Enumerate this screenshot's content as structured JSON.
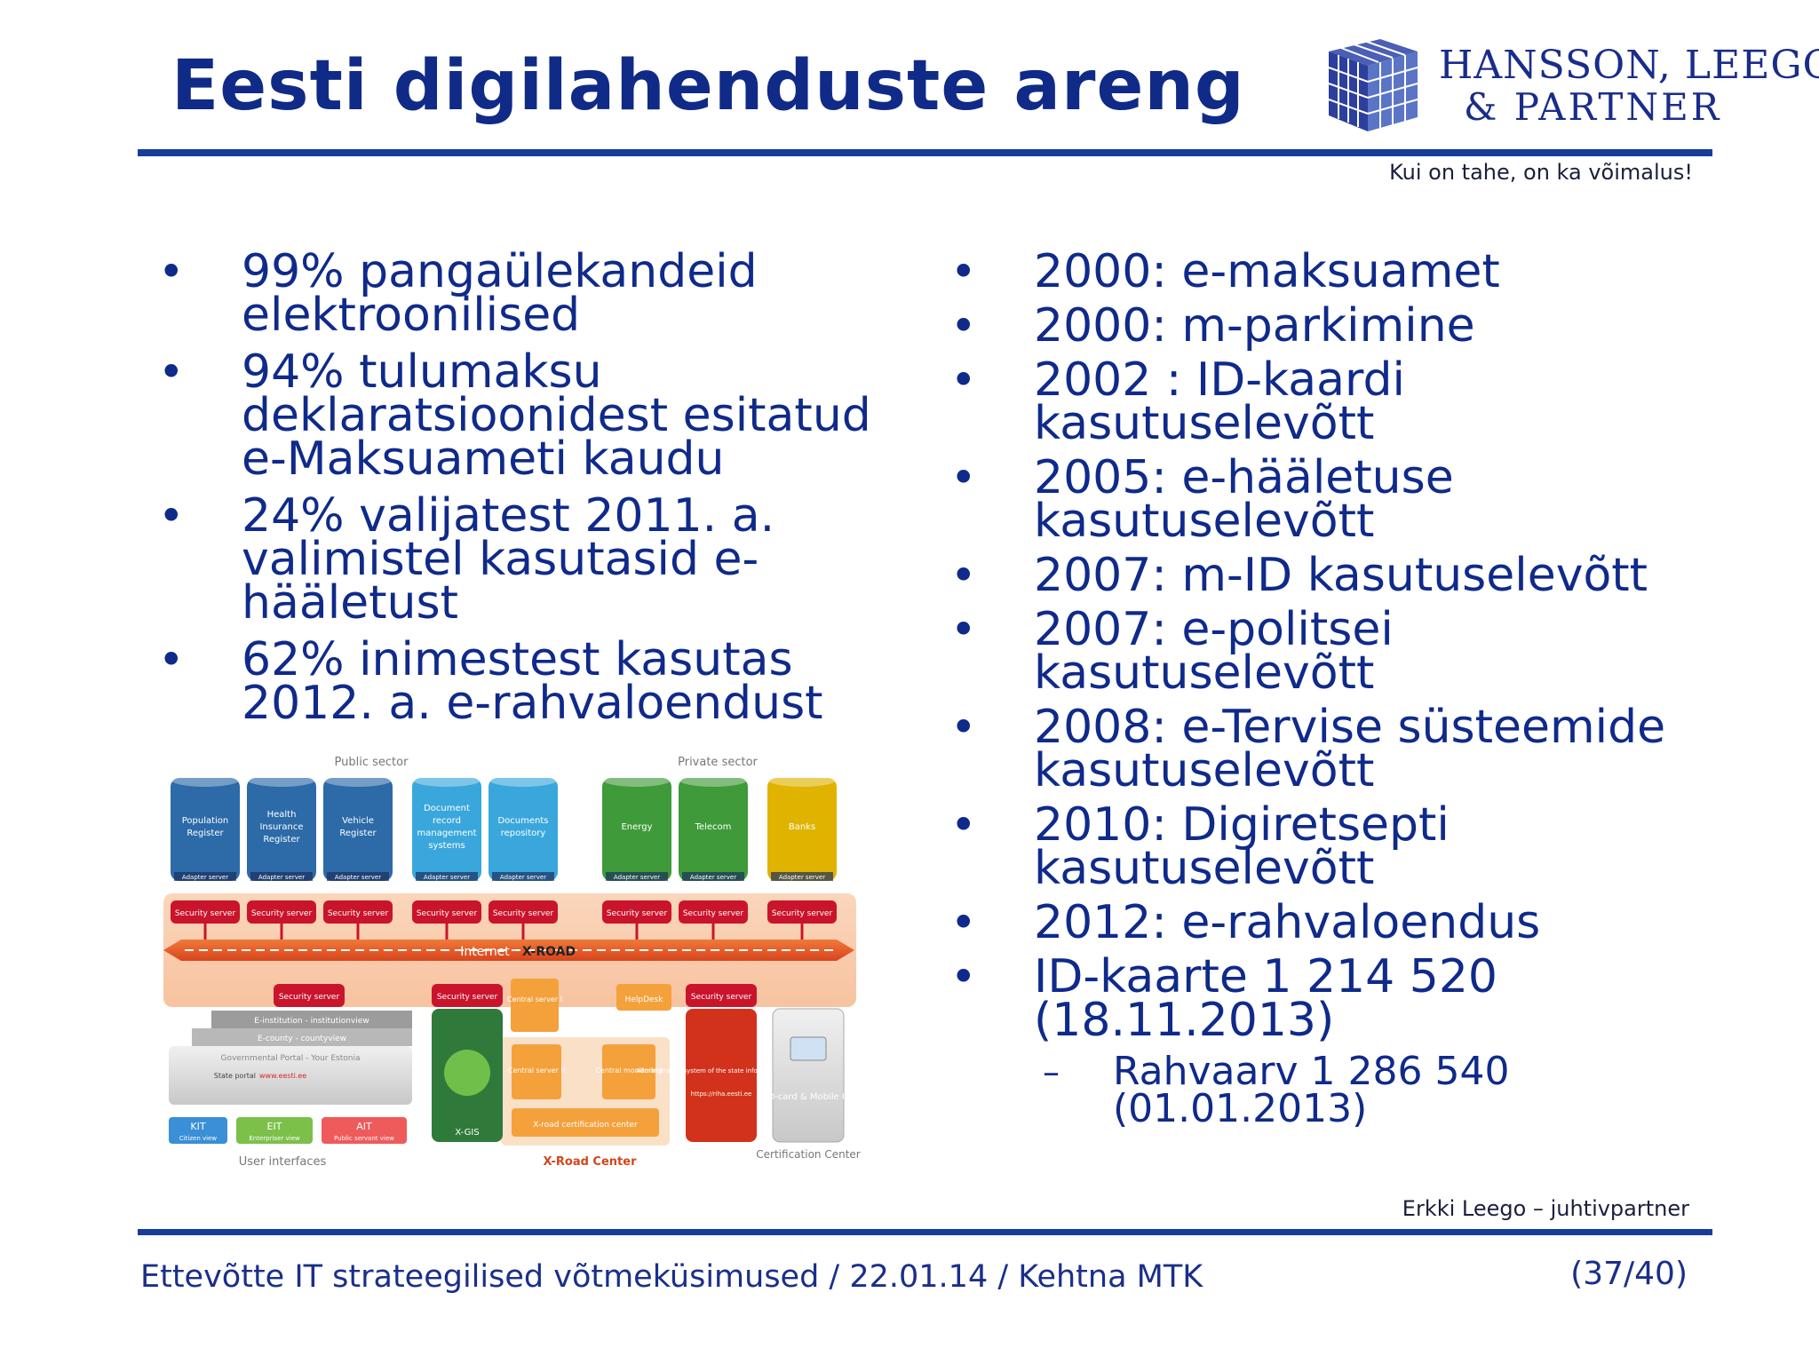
{
  "title": "Eesti digilahenduste areng",
  "logo": {
    "line1": "HANSSON, LEEGO",
    "line2": "& PARTNER"
  },
  "tagline": "Kui on tahe, on ka võimalus!",
  "left_bullets": [
    "99% pangaülekandeid elektroonilised",
    "94% tulumaksu deklaratsioonidest esitatud e-Maksuameti kaudu",
    "24% valijatest 2011. a. valimistel kasutasid e-hääletust",
    "62% inimestest kasutas 2012. a. e-rahvaloendust"
  ],
  "right_bullets": [
    "2000: e-maksuamet",
    "2000: m-parkimine",
    "2002 : ID-kaardi kasutuselevõtt",
    "2005: e-hääletuse kasutuselevõtt",
    "2007: m-ID kasutuselevõtt",
    "2007: e-politsei kasutuselevõtt",
    "2008: e-Tervise süsteemide kasutuselevõtt",
    "2010: Digiretsepti kasutuselevõtt",
    "2012: e-rahvaloendus",
    "ID-kaarte 1 214 520 (18.11.2013)"
  ],
  "sub_bullet": "Rahvaarv 1 286 540 (01.01.2013)",
  "diagram": {
    "public_sector": "Public sector",
    "private_sector": "Private sector",
    "cylinders": [
      {
        "label": "Population Register",
        "color": "#2c6aa8"
      },
      {
        "label": "Health Insurance Register",
        "color": "#2c6aa8"
      },
      {
        "label": "Vehicle Register",
        "color": "#2c6aa8"
      },
      {
        "label": "Document record management systems",
        "color": "#3aa7dc"
      },
      {
        "label": "Documents repository",
        "color": "#3aa7dc"
      },
      {
        "label": "Energy",
        "color": "#3f9a3a"
      },
      {
        "label": "Telecom",
        "color": "#3f9a3a"
      },
      {
        "label": "Banks",
        "color": "#e0b300"
      }
    ],
    "adapter_server": "Adapter server",
    "security_server": "Security server",
    "internet": "Internet",
    "xroad": "X-ROAD",
    "central_server_1": "Central server I",
    "central_server_2": "Central server II",
    "helpdesk": "HelpDesk",
    "central_monitoring": "Central monitoring",
    "xroad_cert_center": "X-road certification center",
    "admin_system": "Administrative system of the state information system",
    "admin_link": "https://riha.eesti.ee",
    "xgis": "X-GIS",
    "id_card": "ID-card & Mobile ID",
    "e_institution": "E-institution - institutionview",
    "e_county": "E-county - countyview",
    "gov_portal": "Governmental Portal - Your Estonia",
    "state_portal": "State portal",
    "state_portal_link": "www.eesti.ee",
    "kit": "KIT",
    "kit_sub": "Citizen view",
    "eit": "EIT",
    "eit_sub": "Enterpriser view",
    "ait": "AIT",
    "ait_sub": "Public servant view",
    "user_interfaces": "User interfaces",
    "xroad_center": "X-Road Center",
    "certification_center": "Certification Center"
  },
  "author": "Erkki Leego – juhtivpartner",
  "footer": "Ettevõtte IT strateegilised võtmeküsimused / 22.01.14 / Kehtna MTK",
  "page_number": "(37/40)"
}
